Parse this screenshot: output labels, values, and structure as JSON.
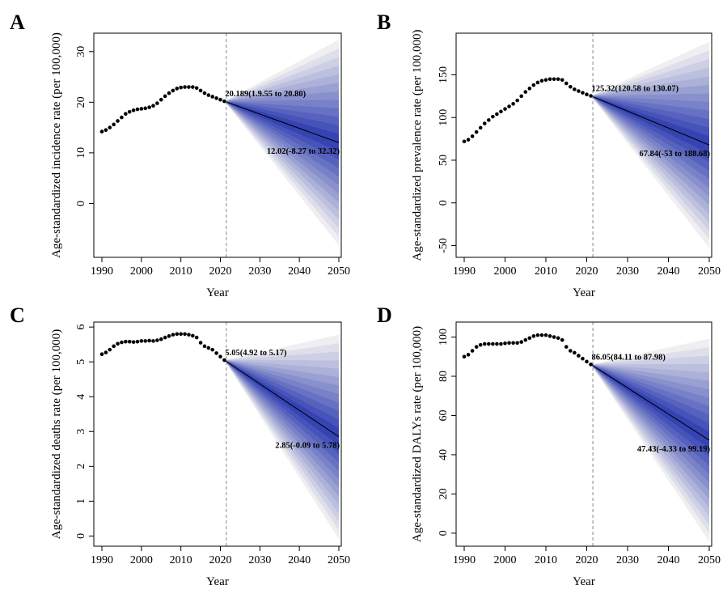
{
  "chart_data": [
    {
      "panel": "A",
      "type": "line",
      "ylabel": "Age-standardized incidence rate (per 100,000)",
      "xlabel": "Year",
      "xlim": [
        1990,
        2050
      ],
      "ylim": [
        -10,
        33
      ],
      "xticks": [
        1990,
        2000,
        2010,
        2020,
        2030,
        2040,
        2050
      ],
      "yticks": [
        0,
        10,
        20,
        30
      ],
      "observed": {
        "x": [
          1990,
          1991,
          1992,
          1993,
          1994,
          1995,
          1996,
          1997,
          1998,
          1999,
          2000,
          2001,
          2002,
          2003,
          2004,
          2005,
          2006,
          2007,
          2008,
          2009,
          2010,
          2011,
          2012,
          2013,
          2014,
          2015,
          2016,
          2017,
          2018,
          2019,
          2020,
          2021
        ],
        "y": [
          14.2,
          14.5,
          15.0,
          15.6,
          16.3,
          17.0,
          17.7,
          18.1,
          18.4,
          18.6,
          18.7,
          18.8,
          19.0,
          19.3,
          19.8,
          20.5,
          21.2,
          21.8,
          22.3,
          22.7,
          22.9,
          23.0,
          23.0,
          23.0,
          22.8,
          22.3,
          21.8,
          21.4,
          21.1,
          20.8,
          20.5,
          20.19
        ]
      },
      "projection": {
        "x": [
          2021,
          2050
        ],
        "mean": [
          20.19,
          12.02
        ],
        "lower": [
          20.19,
          -8.27
        ],
        "upper": [
          20.19,
          32.32
        ]
      },
      "split_year": 2021.5,
      "annotations": [
        {
          "text": "20.189(1.9.55 to 20.80)",
          "x": 2021,
          "y": 20.19
        },
        {
          "text": "12.02(-8.27 to 32.32)",
          "x": 2050,
          "y": 12.02
        }
      ]
    },
    {
      "panel": "B",
      "type": "line",
      "ylabel": "Age-standardized prevalence rate (per 100,000)",
      "xlabel": "Year",
      "xlim": [
        1990,
        2050
      ],
      "ylim": [
        -60,
        195
      ],
      "xticks": [
        1990,
        2000,
        2010,
        2020,
        2030,
        2040,
        2050
      ],
      "yticks": [
        -50,
        0,
        50,
        100,
        150
      ],
      "observed": {
        "x": [
          1990,
          1991,
          1992,
          1993,
          1994,
          1995,
          1996,
          1997,
          1998,
          1999,
          2000,
          2001,
          2002,
          2003,
          2004,
          2005,
          2006,
          2007,
          2008,
          2009,
          2010,
          2011,
          2012,
          2013,
          2014,
          2015,
          2016,
          2017,
          2018,
          2019,
          2020,
          2021
        ],
        "y": [
          72,
          74,
          78,
          83,
          88,
          93,
          97,
          101,
          104,
          107,
          110,
          113,
          116,
          120,
          125,
          130,
          134,
          138,
          141,
          143,
          144,
          145,
          145,
          145,
          144,
          140,
          136,
          133,
          131,
          129,
          127,
          125.32
        ]
      },
      "projection": {
        "x": [
          2021,
          2050
        ],
        "mean": [
          125.32,
          67.84
        ],
        "lower": [
          125.32,
          -53
        ],
        "upper": [
          125.32,
          188.68
        ]
      },
      "split_year": 2021.5,
      "annotations": [
        {
          "text": "125.32(120.58 to 130.07)",
          "x": 2021,
          "y": 125.32
        },
        {
          "text": "67.84(-53 to 188.68)",
          "x": 2050,
          "y": 67.84
        }
      ]
    },
    {
      "panel": "C",
      "type": "line",
      "ylabel": "Age-standardized deaths rate (per 100,000)",
      "xlabel": "Year",
      "xlim": [
        1990,
        2050
      ],
      "ylim": [
        -0.2,
        6.05
      ],
      "xticks": [
        1990,
        2000,
        2010,
        2020,
        2030,
        2040,
        2050
      ],
      "yticks": [
        0,
        1,
        2,
        3,
        4,
        5,
        6
      ],
      "observed": {
        "x": [
          1990,
          1991,
          1992,
          1993,
          1994,
          1995,
          1996,
          1997,
          1998,
          1999,
          2000,
          2001,
          2002,
          2003,
          2004,
          2005,
          2006,
          2007,
          2008,
          2009,
          2010,
          2011,
          2012,
          2013,
          2014,
          2015,
          2016,
          2017,
          2018,
          2019,
          2020,
          2021
        ],
        "y": [
          5.22,
          5.27,
          5.35,
          5.45,
          5.52,
          5.56,
          5.58,
          5.58,
          5.57,
          5.58,
          5.6,
          5.6,
          5.61,
          5.6,
          5.62,
          5.65,
          5.7,
          5.74,
          5.78,
          5.8,
          5.8,
          5.8,
          5.78,
          5.75,
          5.7,
          5.55,
          5.45,
          5.4,
          5.35,
          5.25,
          5.15,
          5.05
        ]
      },
      "projection": {
        "x": [
          2021,
          2050
        ],
        "mean": [
          5.05,
          2.85
        ],
        "lower": [
          5.05,
          -0.09
        ],
        "upper": [
          5.05,
          5.78
        ]
      },
      "split_year": 2021.5,
      "annotations": [
        {
          "text": "5.05(4.92 to 5.17)",
          "x": 2021,
          "y": 5.05
        },
        {
          "text": "2.85(-0.09 to 5.78)",
          "x": 2050,
          "y": 2.85
        }
      ]
    },
    {
      "panel": "D",
      "type": "line",
      "ylabel": "Age-standardized DALYs rate (per 100,000)",
      "xlabel": "Year",
      "xlim": [
        1990,
        2050
      ],
      "ylim": [
        -5,
        106
      ],
      "xticks": [
        1990,
        2000,
        2010,
        2020,
        2030,
        2040,
        2050
      ],
      "yticks": [
        0,
        20,
        40,
        60,
        80,
        100
      ],
      "observed": {
        "x": [
          1990,
          1991,
          1992,
          1993,
          1994,
          1995,
          1996,
          1997,
          1998,
          1999,
          2000,
          2001,
          2002,
          2003,
          2004,
          2005,
          2006,
          2007,
          2008,
          2009,
          2010,
          2011,
          2012,
          2013,
          2014,
          2015,
          2016,
          2017,
          2018,
          2019,
          2020,
          2021
        ],
        "y": [
          90,
          91,
          93,
          95,
          96,
          96.5,
          96.5,
          96.5,
          96.5,
          96.5,
          96.8,
          97,
          97,
          97,
          97.5,
          98.5,
          99.5,
          100.5,
          101,
          101,
          101,
          100.5,
          100,
          99.5,
          98.5,
          95,
          93,
          92,
          90.5,
          89,
          87.5,
          86.05
        ]
      },
      "projection": {
        "x": [
          2021,
          2050
        ],
        "mean": [
          86.05,
          47.43
        ],
        "lower": [
          86.05,
          -4.33
        ],
        "upper": [
          86.05,
          99.19
        ]
      },
      "split_year": 2021.5,
      "annotations": [
        {
          "text": "86.05(84.11 to 87.98)",
          "x": 2021,
          "y": 86.05
        },
        {
          "text": "47.43(-4.33 to 99.19)",
          "x": 2050,
          "y": 47.43
        }
      ]
    }
  ]
}
